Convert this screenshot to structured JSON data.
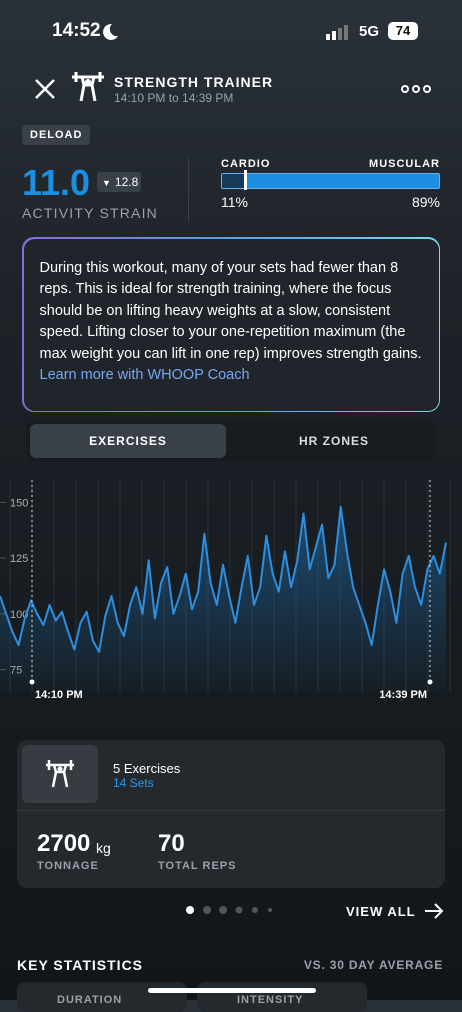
{
  "status_bar": {
    "time": "14:52",
    "network": "5G",
    "battery": "74"
  },
  "header": {
    "title": "STRENGTH TRAINER",
    "subtitle": "14:10 PM to 14:39 PM"
  },
  "badge": "DELOAD",
  "strain": {
    "value": "11.0",
    "previous": "12.8",
    "label": "ACTIVITY STRAIN"
  },
  "split": {
    "left_label": "CARDIO",
    "right_label": "MUSCULAR",
    "cardio": {
      "value": 11,
      "label": "11%"
    },
    "muscular": {
      "value": 89,
      "label": "89%"
    }
  },
  "insight": {
    "text": "During this workout, many of your sets had fewer than 8 reps. This is ideal for strength training, where the focus should be on lifting heavy weights at a slow, consistent speed. Lifting closer to your one-repetition maximum (the max weight you can lift in one rep) improves strength gains.",
    "link": "Learn more with WHOOP Coach"
  },
  "tabs": [
    "EXERCISES",
    "HR ZONES"
  ],
  "chart_data": {
    "type": "line",
    "color": "#2d8fe0",
    "values": [
      108,
      100,
      92,
      86,
      98,
      106,
      100,
      95,
      104,
      97,
      101,
      92,
      84,
      96,
      101,
      88,
      83,
      99,
      108,
      96,
      90,
      104,
      112,
      100,
      124,
      98,
      114,
      121,
      100,
      108,
      118,
      102,
      110,
      136,
      114,
      104,
      122,
      108,
      96,
      112,
      126,
      104,
      112,
      135,
      118,
      110,
      128,
      112,
      124,
      145,
      120,
      130,
      140,
      116,
      122,
      148,
      128,
      112,
      104,
      96,
      86,
      104,
      120,
      110,
      96,
      118,
      126,
      112,
      104,
      120,
      126,
      118,
      132
    ],
    "ylim": [
      65,
      160
    ],
    "yticks": [
      75,
      100,
      125,
      150
    ],
    "start_label": "14:10 PM",
    "end_label": "14:39 PM"
  },
  "summary": {
    "exercises": "5 Exercises",
    "sets": "14 Sets",
    "tonnage": "2700",
    "tonnage_unit": "kg",
    "tonnage_label": "TONNAGE",
    "reps": "70",
    "reps_label": "TOTAL REPS",
    "view_all": "VIEW ALL"
  },
  "key_statistics": {
    "title": "KEY STATISTICS",
    "comparison": "VS. 30 DAY AVERAGE",
    "cards": [
      "DURATION",
      "INTENSITY"
    ]
  }
}
